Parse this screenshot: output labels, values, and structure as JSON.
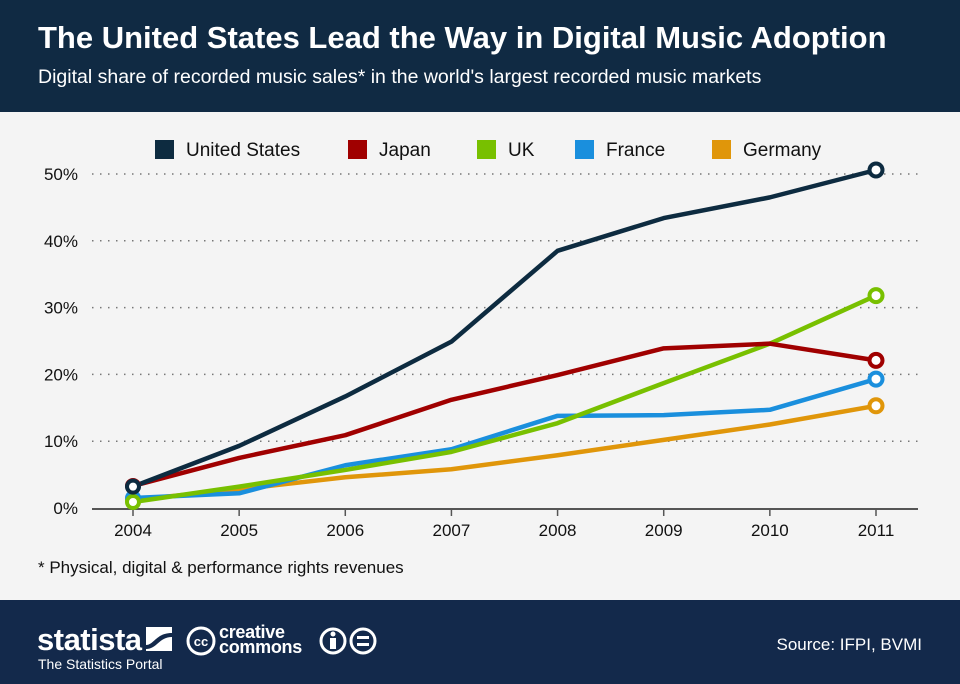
{
  "header": {
    "title": "The United States Lead the Way in Digital Music Adoption",
    "subtitle": "Digital share of recorded music sales* in the world's largest recorded music markets"
  },
  "footnote": "* Physical, digital & performance rights revenues",
  "footer": {
    "brand": "statista",
    "tagline": "The Statistics Portal",
    "license": "creative commons",
    "license_icons": [
      "cc-icon",
      "attribution-icon",
      "no-derivatives-icon"
    ],
    "source": "Source: IFPI, BVMI"
  },
  "chart_data": {
    "type": "line",
    "title": "",
    "xlabel": "",
    "ylabel": "",
    "x": [
      "2004",
      "2005",
      "2006",
      "2007",
      "2008",
      "2009",
      "2010",
      "2011"
    ],
    "ylim": [
      0,
      50
    ],
    "yticks": [
      0,
      10,
      20,
      30,
      40,
      50
    ],
    "ytick_labels": [
      "0%",
      "10%",
      "20%",
      "30%",
      "40%",
      "50%"
    ],
    "grid": true,
    "legend": "top",
    "series": [
      {
        "name": "United States",
        "color": "#0d2b40",
        "values": [
          3.2,
          9.3,
          16.7,
          24.9,
          38.5,
          43.4,
          46.5,
          50.6
        ]
      },
      {
        "name": "Japan",
        "color": "#a00000",
        "values": [
          3.3,
          7.5,
          10.9,
          16.2,
          19.9,
          23.9,
          24.6,
          22.1
        ]
      },
      {
        "name": "UK",
        "color": "#78c000",
        "values": [
          0.9,
          3.2,
          5.7,
          8.4,
          12.7,
          18.7,
          24.6,
          31.8
        ]
      },
      {
        "name": "France",
        "color": "#1a8fdd",
        "values": [
          1.5,
          2.2,
          6.4,
          8.8,
          13.8,
          13.9,
          14.7,
          19.3
        ]
      },
      {
        "name": "Germany",
        "color": "#e0960a",
        "values": [
          1.2,
          2.8,
          4.6,
          5.8,
          7.9,
          10.2,
          12.5,
          15.3
        ]
      }
    ]
  }
}
